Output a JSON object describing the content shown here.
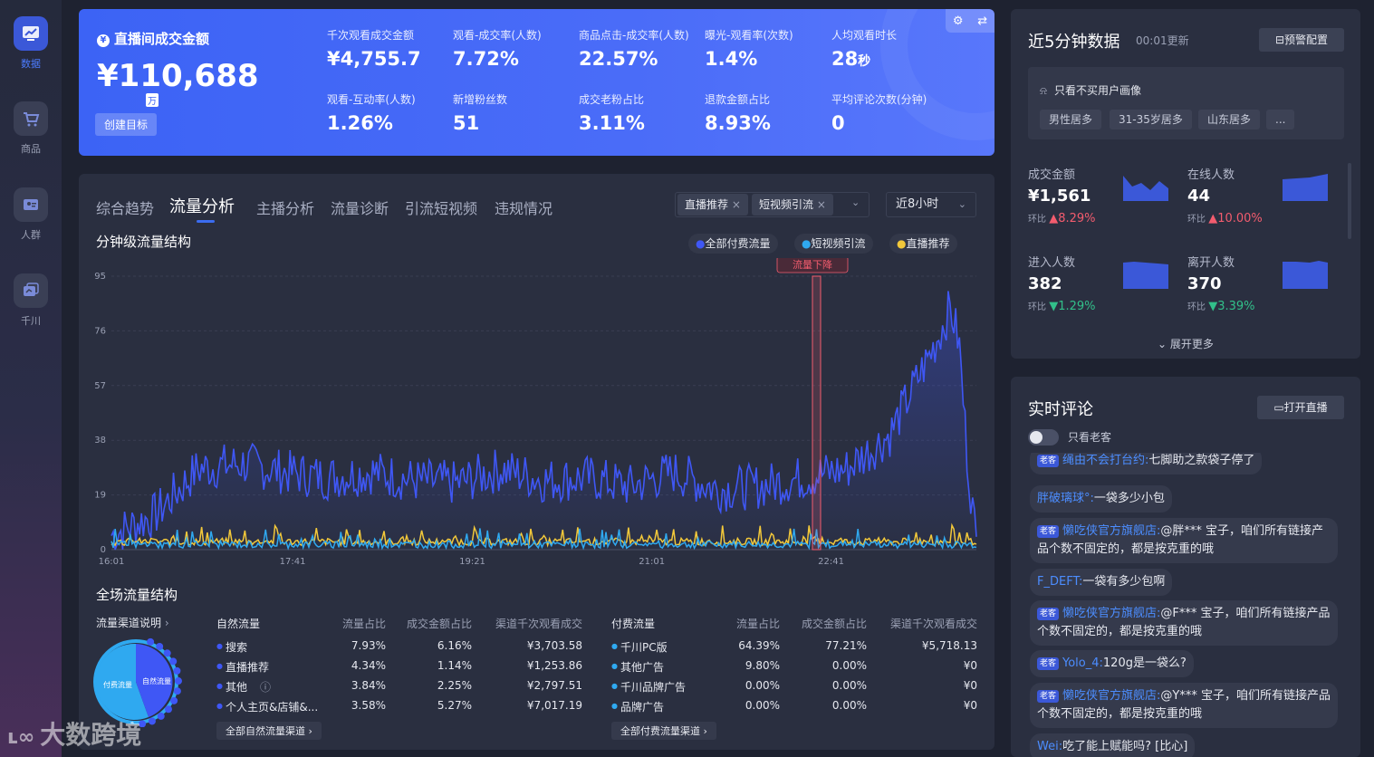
{
  "sidebar": {
    "items": [
      {
        "label": "数据",
        "icon": "chart-trend-icon"
      },
      {
        "label": "商品",
        "icon": "shopping-cart-icon"
      },
      {
        "label": "人群",
        "icon": "users-icon"
      },
      {
        "label": "千川",
        "icon": "qianchuan-icon"
      }
    ]
  },
  "hero": {
    "title": "直播间成交金额",
    "amount": "¥110,688",
    "unit": "万",
    "create_goal": "创建目标",
    "metrics": [
      {
        "label": "千次观看成交金额",
        "value": "¥4,755.7"
      },
      {
        "label": "观看-成交率(人数)",
        "value": "7.72%"
      },
      {
        "label": "商品点击-成交率(人数)",
        "value": "22.57%"
      },
      {
        "label": "曝光-观看率(次数)",
        "value": "1.4%"
      },
      {
        "label": "人均观看时长",
        "value": "28",
        "suffix": "秒"
      },
      {
        "label": "观看-互动率(人数)",
        "value": "1.26%"
      },
      {
        "label": "新增粉丝数",
        "value": "51"
      },
      {
        "label": "成交老粉占比",
        "value": "3.11%"
      },
      {
        "label": "退款金额占比",
        "value": "8.93%"
      },
      {
        "label": "平均评论次数(分钟)",
        "value": "0"
      }
    ]
  },
  "tabs": [
    "综合趋势",
    "流量分析",
    "主播分析",
    "流量诊断",
    "引流短视频",
    "违规情况"
  ],
  "filters": {
    "chips": [
      "直播推荐",
      "短视频引流"
    ],
    "time_range": "近8小时"
  },
  "chart_title": "分钟级流量结构",
  "chart_data": {
    "type": "line",
    "title": "分钟级流量结构",
    "x_ticks": [
      "16:01",
      "17:41",
      "19:21",
      "21:01",
      "22:41"
    ],
    "y_ticks": [
      0,
      19,
      38,
      57,
      76,
      95
    ],
    "ylim": [
      0,
      95
    ],
    "annotation": "流量下降",
    "series": [
      {
        "name": "全部付费流量",
        "color": "#3f57f5",
        "anchors": [
          [
            0,
            5
          ],
          [
            5,
            12
          ],
          [
            10,
            28
          ],
          [
            15,
            30
          ],
          [
            20,
            27
          ],
          [
            25,
            25
          ],
          [
            30,
            27
          ],
          [
            35,
            24
          ],
          [
            40,
            23
          ],
          [
            45,
            28
          ],
          [
            50,
            24
          ],
          [
            55,
            25
          ],
          [
            60,
            22
          ],
          [
            65,
            27
          ],
          [
            70,
            21
          ],
          [
            75,
            22
          ],
          [
            80,
            25
          ],
          [
            85,
            28
          ],
          [
            90,
            40
          ],
          [
            95,
            70
          ],
          [
            97,
            84
          ],
          [
            98,
            72
          ],
          [
            99,
            30
          ],
          [
            100,
            2
          ]
        ]
      },
      {
        "name": "短视频引流",
        "color": "#2fa9f0",
        "anchors": [
          [
            0,
            2
          ],
          [
            50,
            2
          ],
          [
            100,
            2
          ]
        ]
      },
      {
        "name": "直播推荐",
        "color": "#f2c83a",
        "anchors": [
          [
            0,
            3
          ],
          [
            50,
            3
          ],
          [
            100,
            3
          ]
        ]
      }
    ]
  },
  "structure": {
    "title": "全场流量结构",
    "explain": "流量渠道说明",
    "donut_labels": [
      "付费流量",
      "自然流量"
    ],
    "natural": {
      "header": [
        "自然流量",
        "流量占比",
        "成交金额占比",
        "渠道千次观看成交"
      ],
      "rows": [
        [
          "搜索",
          "7.93%",
          "6.16%",
          "¥3,703.58"
        ],
        [
          "直播推荐",
          "4.34%",
          "1.14%",
          "¥1,253.86"
        ],
        [
          "其他",
          "3.84%",
          "2.25%",
          "¥2,797.51"
        ],
        [
          "个人主页&店铺&...",
          "3.58%",
          "5.27%",
          "¥7,017.19"
        ]
      ],
      "see_all": "全部自然流量渠道"
    },
    "paid": {
      "header": [
        "付费流量",
        "流量占比",
        "成交金额占比",
        "渠道千次观看成交"
      ],
      "rows": [
        [
          "千川PC版",
          "64.39%",
          "77.21%",
          "¥5,718.13"
        ],
        [
          "其他广告",
          "9.80%",
          "0.00%",
          "¥0"
        ],
        [
          "千川品牌广告",
          "0.00%",
          "0.00%",
          "¥0"
        ],
        [
          "品牌广告",
          "0.00%",
          "0.00%",
          "¥0"
        ]
      ],
      "see_all": "全部付费流量渠道"
    }
  },
  "recent": {
    "title": "近5分钟数据",
    "updated": "00:01更新",
    "alert_button": "预警配置",
    "portrait_label": "只看不买用户画像",
    "portrait_tags": [
      "男性居多",
      "31-35岁居多",
      "山东居多",
      "..."
    ],
    "metrics": [
      {
        "label": "成交金额",
        "value": "¥1,561",
        "cmp_label": "环比",
        "trend": "up",
        "change": "8.29%"
      },
      {
        "label": "在线人数",
        "value": "44",
        "cmp_label": "环比",
        "trend": "up",
        "change": "10.00%"
      },
      {
        "label": "进入人数",
        "value": "382",
        "cmp_label": "环比",
        "trend": "down",
        "change": "1.29%"
      },
      {
        "label": "离开人数",
        "value": "370",
        "cmp_label": "环比",
        "trend": "down",
        "change": "3.39%"
      }
    ],
    "expand": "展开更多"
  },
  "comments": {
    "title": "实时评论",
    "open_live": "打开直播",
    "toggle_label": "只看老客",
    "badge": "老客",
    "items": [
      {
        "badge": true,
        "name": "绳由不会打台约:",
        "text": "七脚助之款袋子停了"
      },
      {
        "badge": false,
        "name": "胖破璃球°:",
        "text": "一袋多少小包"
      },
      {
        "badge": true,
        "name": "懒吃侠官方旗舰店:",
        "text": "@胖*** 宝子，咱们所有链接产品个数不固定的，都是按克重的哦"
      },
      {
        "badge": false,
        "name": "F_DEFT:",
        "text": "一袋有多少包啊"
      },
      {
        "badge": true,
        "name": "懒吃侠官方旗舰店:",
        "text": "@F*** 宝子，咱们所有链接产品个数不固定的，都是按克重的哦"
      },
      {
        "badge": true,
        "name": "Yolo_4:",
        "text": "120g是一袋么?"
      },
      {
        "badge": true,
        "name": "懒吃侠官方旗舰店:",
        "text": "@Y*** 宝子，咱们所有链接产品个数不固定的，都是按克重的哦"
      },
      {
        "badge": false,
        "name": "Wei:",
        "text": "吃了能上赋能吗? [比心]"
      }
    ]
  },
  "watermark": "大数跨境",
  "colors": {
    "accent": "#3b6cf0",
    "up": "#f35c6e",
    "down": "#32c08a",
    "paid": "#3f57f5",
    "video": "#2fa9f0",
    "live": "#f2c83a"
  }
}
